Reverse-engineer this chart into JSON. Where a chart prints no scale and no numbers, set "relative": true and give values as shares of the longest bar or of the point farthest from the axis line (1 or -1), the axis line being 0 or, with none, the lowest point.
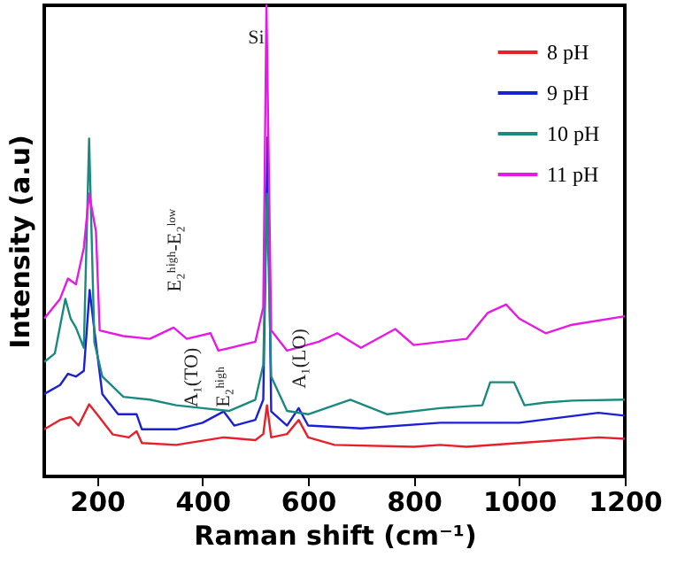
{
  "chart_data": {
    "type": "line",
    "relative": true,
    "xlabel": "Raman shift (cm⁻¹)",
    "ylabel": "Intensity (a.u)",
    "xlim": [
      100,
      1200
    ],
    "xticks": [
      200,
      400,
      600,
      800,
      1000,
      1200
    ],
    "legend": "top right",
    "line_style": "solid",
    "marker": "none",
    "series": [
      {
        "name": "8 pH",
        "color": "#e8202a",
        "x": [
          100,
          130,
          150,
          165,
          185,
          200,
          230,
          260,
          275,
          285,
          350,
          440,
          500,
          515,
          522,
          530,
          560,
          582,
          600,
          650,
          800,
          850,
          900,
          1000,
          1150,
          1200
        ],
        "values": [
          0.1,
          0.12,
          0.126,
          0.108,
          0.153,
          0.132,
          0.089,
          0.083,
          0.096,
          0.071,
          0.067,
          0.083,
          0.077,
          0.09,
          0.151,
          0.083,
          0.09,
          0.12,
          0.083,
          0.067,
          0.063,
          0.067,
          0.063,
          0.071,
          0.083,
          0.08
        ]
      },
      {
        "name": "9 pH",
        "color": "#1b1fd6",
        "x": [
          100,
          130,
          145,
          160,
          175,
          186,
          195,
          210,
          240,
          275,
          285,
          350,
          400,
          440,
          460,
          500,
          515,
          523,
          530,
          560,
          582,
          600,
          700,
          850,
          1000,
          1150,
          1200
        ],
        "values": [
          0.175,
          0.194,
          0.218,
          0.212,
          0.224,
          0.396,
          0.31,
          0.175,
          0.132,
          0.132,
          0.1,
          0.1,
          0.114,
          0.138,
          0.108,
          0.12,
          0.163,
          0.72,
          0.138,
          0.108,
          0.145,
          0.108,
          0.102,
          0.114,
          0.114,
          0.135,
          0.129
        ]
      },
      {
        "name": "10 pH",
        "color": "#1a8a7e",
        "x": [
          100,
          120,
          140,
          150,
          160,
          175,
          185,
          195,
          210,
          250,
          300,
          350,
          400,
          450,
          500,
          515,
          522,
          530,
          560,
          600,
          680,
          750,
          850,
          930,
          945,
          990,
          1010,
          1050,
          1100,
          1200
        ],
        "values": [
          0.243,
          0.261,
          0.377,
          0.335,
          0.316,
          0.273,
          0.717,
          0.285,
          0.212,
          0.169,
          0.163,
          0.151,
          0.145,
          0.139,
          0.163,
          0.237,
          0.6,
          0.212,
          0.139,
          0.132,
          0.163,
          0.132,
          0.145,
          0.151,
          0.2,
          0.2,
          0.151,
          0.157,
          0.161,
          0.163
        ]
      },
      {
        "name": "11 pH",
        "color": "#e619e6",
        "x": [
          100,
          130,
          145,
          160,
          175,
          185,
          198,
          205,
          250,
          300,
          345,
          370,
          415,
          430,
          500,
          515,
          521,
          530,
          560,
          620,
          655,
          700,
          765,
          800,
          900,
          940,
          975,
          1000,
          1050,
          1100,
          1200
        ],
        "values": [
          0.335,
          0.377,
          0.42,
          0.408,
          0.485,
          0.6,
          0.52,
          0.31,
          0.298,
          0.292,
          0.316,
          0.292,
          0.304,
          0.267,
          0.286,
          0.359,
          1,
          0.31,
          0.267,
          0.286,
          0.304,
          0.273,
          0.313,
          0.279,
          0.292,
          0.347,
          0.365,
          0.335,
          0.304,
          0.322,
          0.34
        ]
      }
    ],
    "annotations": [
      "Si",
      "E₂ʰⁱᵍʰ-E₂ˡᵒʷ",
      "A₁(TO)",
      "E₂ʰⁱᵍʰ",
      "A₁(LO)"
    ]
  }
}
